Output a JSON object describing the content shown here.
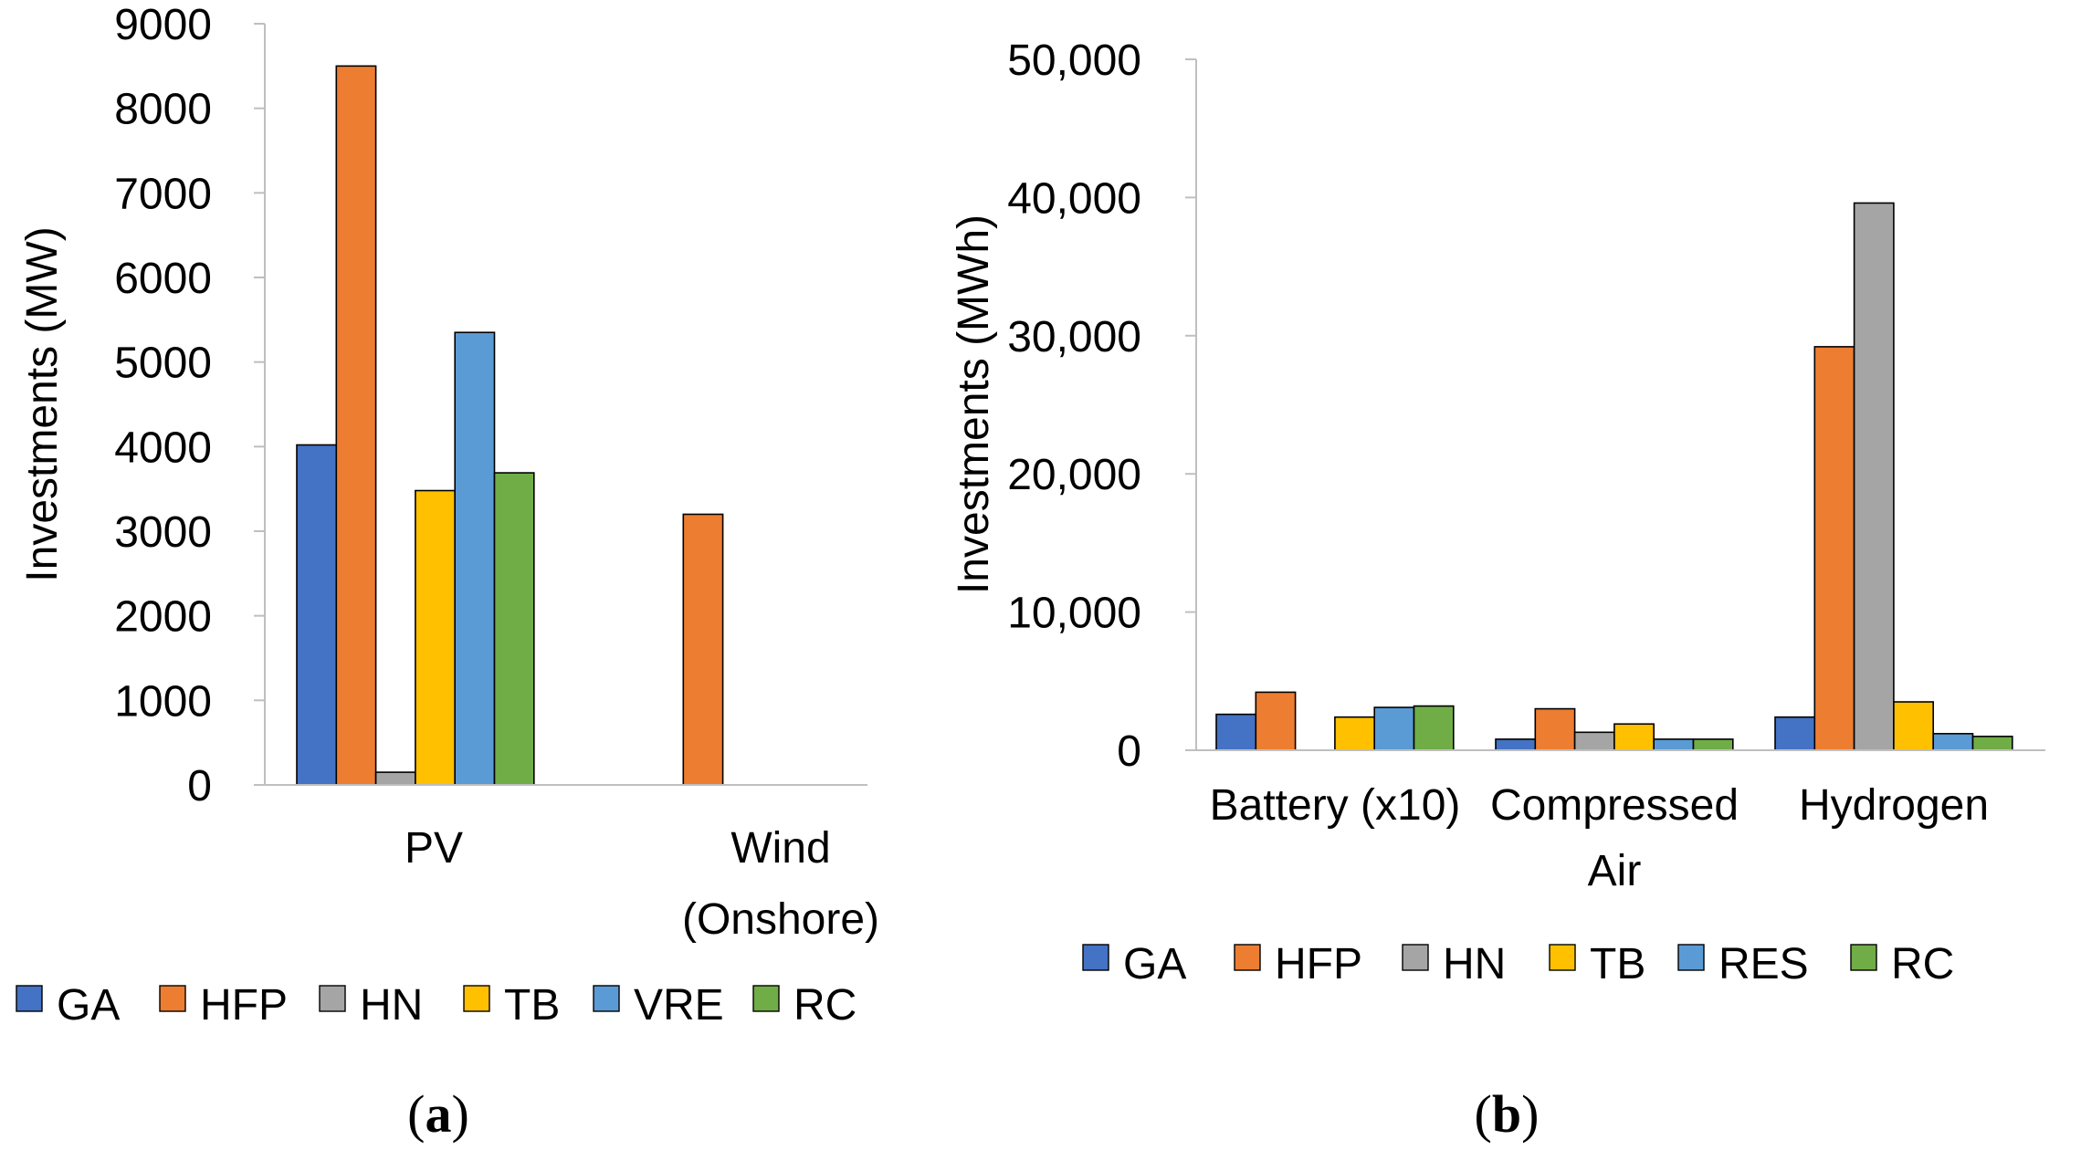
{
  "chart_data": [
    {
      "type": "bar",
      "panel_label": "a",
      "categories": [
        "PV",
        "Wind\n(Onshore)"
      ],
      "series": [
        {
          "name": "GA",
          "color": "#4472C4",
          "values": [
            4020,
            0
          ]
        },
        {
          "name": "HFP",
          "color": "#ED7D31",
          "values": [
            8500,
            3200
          ]
        },
        {
          "name": "HN",
          "color": "#A5A5A5",
          "values": [
            150,
            0
          ]
        },
        {
          "name": "TB",
          "color": "#FFC000",
          "values": [
            3480,
            0
          ]
        },
        {
          "name": "VRE",
          "color": "#5B9BD5",
          "values": [
            5350,
            0
          ]
        },
        {
          "name": "RC",
          "color": "#70AD47",
          "values": [
            3690,
            0
          ]
        }
      ],
      "ylabel": "Investments (MW)",
      "ylim": [
        0,
        9000
      ],
      "yticks": [
        0,
        1000,
        2000,
        3000,
        4000,
        5000,
        6000,
        7000,
        8000,
        9000
      ],
      "ytick_labels": [
        "0",
        "1000",
        "2000",
        "3000",
        "4000",
        "5000",
        "6000",
        "7000",
        "8000",
        "9000"
      ],
      "grid": false,
      "legend": "bottom"
    },
    {
      "type": "bar",
      "panel_label": "b",
      "categories": [
        "Battery (x10)",
        "Compressed\nAir",
        "Hydrogen"
      ],
      "series": [
        {
          "name": "GA",
          "color": "#4472C4",
          "values": [
            2600,
            800,
            2400
          ]
        },
        {
          "name": "HFP",
          "color": "#ED7D31",
          "values": [
            4200,
            3000,
            29200
          ]
        },
        {
          "name": "HN",
          "color": "#A5A5A5",
          "values": [
            0,
            1300,
            39600
          ]
        },
        {
          "name": "TB",
          "color": "#FFC000",
          "values": [
            2400,
            1900,
            3500
          ]
        },
        {
          "name": "RES",
          "color": "#5B9BD5",
          "values": [
            3100,
            800,
            1200
          ]
        },
        {
          "name": "RC",
          "color": "#70AD47",
          "values": [
            3200,
            800,
            1000
          ]
        }
      ],
      "ylabel": "Investments (MWh)",
      "ylim": [
        0,
        50000
      ],
      "yticks": [
        0,
        10000,
        20000,
        30000,
        40000,
        50000
      ],
      "ytick_labels": [
        "0",
        "10,000",
        "20,000",
        "30,000",
        "40,000",
        "50,000"
      ],
      "grid": false,
      "legend": "bottom"
    }
  ]
}
